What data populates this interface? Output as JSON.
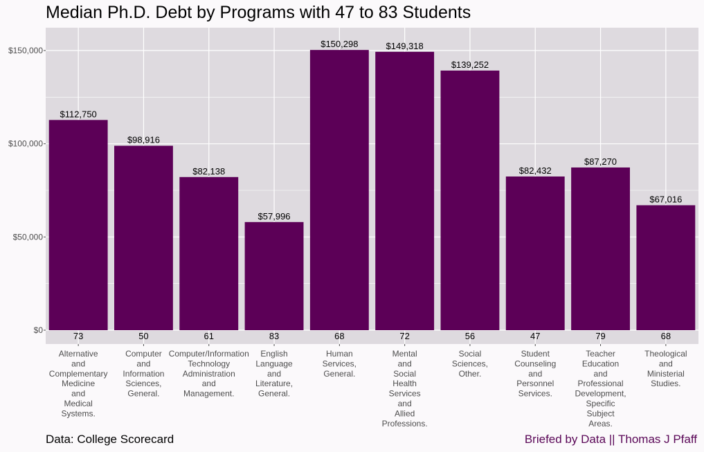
{
  "title": "Median Ph.D. Debt by Programs with 47 to 83 Students",
  "caption_left": "Data: College Scorecard",
  "caption_right": "Briefed by Data || Thomas J Pfaff",
  "colors": {
    "bar": "#5c0057",
    "panel": "#dedadf",
    "grid": "#ffffff",
    "background": "#fbf9fb",
    "caption_right": "#5a0757"
  },
  "chart_data": {
    "type": "bar",
    "title": "Median Ph.D. Debt by Programs with 47 to 83 Students",
    "xlabel": "",
    "ylabel": "",
    "ylim": [
      0,
      162000
    ],
    "grid": true,
    "yticks": [
      0,
      50000,
      100000,
      150000
    ],
    "ytick_labels": [
      "$0",
      "$50,000",
      "$100,000",
      "$150,000"
    ],
    "categories": [
      [
        "Alternative",
        "and",
        "Complementary",
        "Medicine",
        "and",
        "Medical",
        "Systems."
      ],
      [
        "Computer",
        "and",
        "Information",
        "Sciences,",
        "General."
      ],
      [
        "Computer/Information",
        "Technology",
        "Administration",
        "and",
        "Management."
      ],
      [
        "English",
        "Language",
        "and",
        "Literature,",
        "General."
      ],
      [
        "Human",
        "Services,",
        "General."
      ],
      [
        "Mental",
        "and",
        "Social",
        "Health",
        "Services",
        "and",
        "Allied",
        "Professions."
      ],
      [
        "Social",
        "Sciences,",
        "Other."
      ],
      [
        "Student",
        "Counseling",
        "and",
        "Personnel",
        "Services."
      ],
      [
        "Teacher",
        "Education",
        "and",
        "Professional",
        "Development,",
        "Specific",
        "Subject",
        "Areas."
      ],
      [
        "Theological",
        "and",
        "Ministerial",
        "Studies."
      ]
    ],
    "values": [
      112750,
      98916,
      82138,
      57996,
      150298,
      149318,
      139252,
      82432,
      87270,
      67016
    ],
    "value_labels": [
      "$112,750",
      "$98,916",
      "$82,138",
      "$57,996",
      "$150,298",
      "$149,318",
      "$139,252",
      "$82,432",
      "$87,270",
      "$67,016"
    ],
    "counts": [
      "73",
      "50",
      "61",
      "83",
      "68",
      "72",
      "56",
      "47",
      "79",
      "68"
    ]
  }
}
